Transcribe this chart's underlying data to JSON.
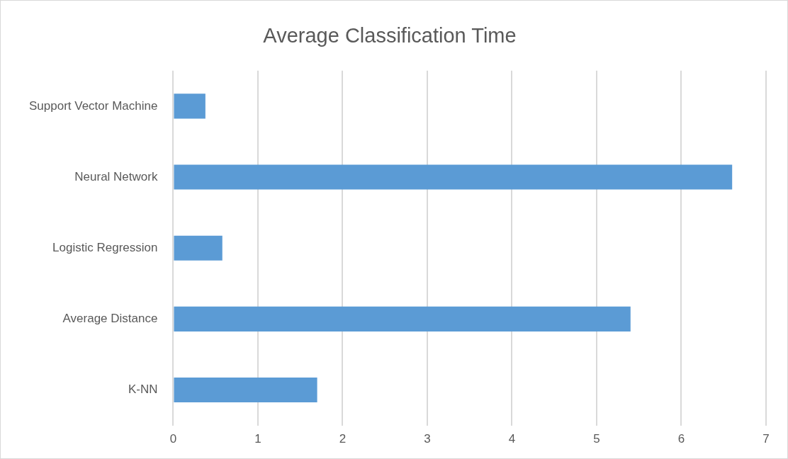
{
  "chart_data": {
    "type": "bar",
    "orientation": "horizontal",
    "title": "Average Classification Time",
    "categories": [
      "Support Vector Machine",
      "Neural Network",
      "Logistic Regression",
      "Average Distance",
      "K-NN"
    ],
    "values": [
      0.38,
      6.6,
      0.58,
      5.4,
      1.7
    ],
    "color": "#5b9bd5",
    "xlim": [
      0,
      7
    ],
    "xticks": [
      0,
      1,
      2,
      3,
      4,
      5,
      6,
      7
    ],
    "grid": "x",
    "legend": false
  }
}
